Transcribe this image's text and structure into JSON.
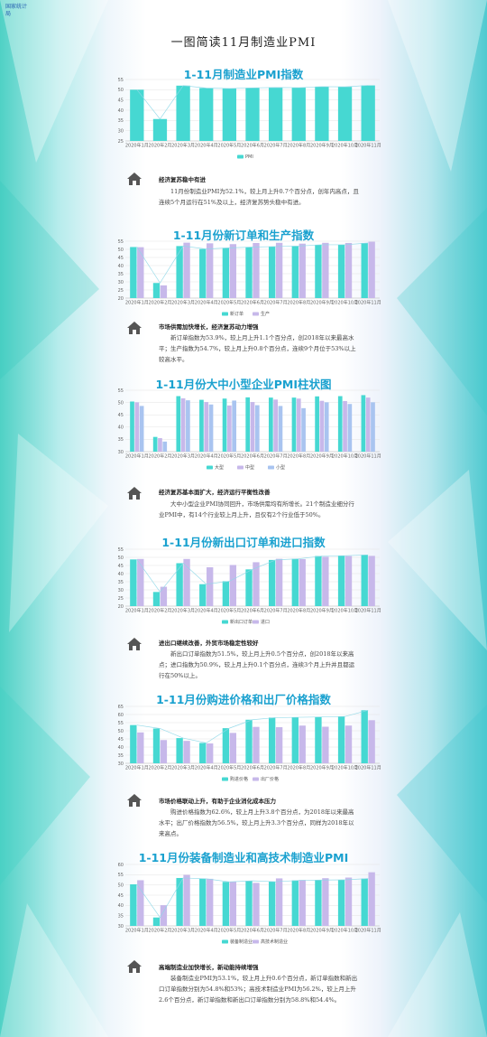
{
  "logo_text": "国家统计局",
  "page_title": "一图简读11月制造业PMI",
  "colors": {
    "teal": "#46d8d2",
    "lavender": "#c7b8ea",
    "line": "#8fd8e8",
    "title": "#1aa1cf"
  },
  "months": [
    "2020年1月",
    "2020年2月",
    "2020年3月",
    "2020年4月",
    "2020年5月",
    "2020年6月",
    "2020年7月",
    "2020年8月",
    "2020年9月",
    "2020年10月",
    "2020年11月"
  ],
  "sections": [
    {
      "note_head": "经济复苏稳中有进",
      "note_body": "11月份制造业PMI为52.1%，较上月上升0.7个百分点，创年内高点，且连续5个月运行在51%及以上，经济复苏势头稳中有进。"
    },
    {
      "note_head": "市场供需加快增长，经济复苏动力增强",
      "note_body": "新订单指数为53.9%，较上月上升1.1个百分点，创2018年以来最高水平；生产指数为54.7%，较上月上升0.8个百分点，连续9个月位于53%以上较高水平。"
    },
    {
      "note_head": "经济复苏基本面扩大，经济运行平衡性改善",
      "note_body": "大中小型企业PMI协同回升，市场供需均有所增长。21个制造业细分行业PMI中，有14个行业较上月上升，且仅有2个行业低于50%。"
    },
    {
      "note_head": "进出口继续改善，外贸市场稳定性较好",
      "note_body": "新出口订单指数为51.5%，较上月上升0.5个百分点，创2018年以来高点；进口指数为50.9%，较上月上升0.1个百分点，连续3个月上升并且都运行在50%以上。"
    },
    {
      "note_head": "市场价格联动上升，有助于企业消化成本压力",
      "note_body": "购进价格指数为62.6%，较上月上升3.8个百分点，为2018年以来最高水平；出厂价格指数为56.5%，较上月上升3.3个百分点，同样为2018年以来高点。"
    },
    {
      "note_head": "高端制造业加快增长，新动能持续增强",
      "note_body": "装备制造业PMI为53.1%，较上月上升0.6个百分点，新订单指数和新出口订单指数分别为54.8%和53%；高技术制造业PMI为56.2%，较上月上升2.6个百分点，新订单指数和新出口订单指数分别为58.8%和54.4%。"
    }
  ],
  "chart_data": [
    {
      "type": "bar",
      "title": "1-11月制造业PMI指数",
      "categories": [
        "2020年1月",
        "2020年2月",
        "2020年3月",
        "2020年4月",
        "2020年5月",
        "2020年6月",
        "2020年7月",
        "2020年8月",
        "2020年9月",
        "2020年10月",
        "2020年11月"
      ],
      "series": [
        {
          "name": "PMI",
          "values": [
            50.0,
            35.7,
            52.0,
            50.8,
            50.6,
            50.9,
            51.1,
            51.0,
            51.5,
            51.4,
            52.1
          ],
          "color": "#46d8d2"
        }
      ],
      "ylim": [
        25,
        55
      ],
      "yticks": [
        25,
        30,
        35,
        40,
        45,
        50,
        55
      ],
      "grid": true,
      "legend": "bottom",
      "trend_line": true
    },
    {
      "type": "bar",
      "title": "1-11月份新订单和生产指数",
      "categories": [
        "2020年1月",
        "2020年2月",
        "2020年3月",
        "2020年4月",
        "2020年5月",
        "2020年6月",
        "2020年7月",
        "2020年8月",
        "2020年9月",
        "2020年10月",
        "2020年11月"
      ],
      "series": [
        {
          "name": "新订单",
          "values": [
            51.4,
            29.3,
            52.0,
            50.2,
            50.9,
            51.4,
            51.7,
            52.0,
            52.8,
            52.8,
            53.9
          ],
          "color": "#46d8d2"
        },
        {
          "name": "生产",
          "values": [
            51.3,
            27.8,
            54.1,
            53.7,
            53.2,
            53.9,
            54.0,
            53.5,
            54.0,
            53.9,
            54.7
          ],
          "color": "#c7b8ea"
        }
      ],
      "ylim": [
        20,
        55
      ],
      "yticks": [
        20,
        25,
        30,
        35,
        40,
        45,
        50,
        55
      ],
      "grid": true,
      "legend": "bottom",
      "trend_line": true
    },
    {
      "type": "bar",
      "title": "1-11月份大中小型企业PMI柱状图",
      "categories": [
        "2020年1月",
        "2020年2月",
        "2020年3月",
        "2020年4月",
        "2020年5月",
        "2020年6月",
        "2020年7月",
        "2020年8月",
        "2020年9月",
        "2020年10月",
        "2020年11月"
      ],
      "series": [
        {
          "name": "大型",
          "values": [
            50.4,
            36.0,
            52.6,
            51.1,
            51.6,
            52.1,
            52.0,
            52.0,
            52.5,
            52.6,
            53.0
          ],
          "color": "#46d8d2"
        },
        {
          "name": "中型",
          "values": [
            50.1,
            35.5,
            51.7,
            50.2,
            48.8,
            50.2,
            51.2,
            51.6,
            50.7,
            50.6,
            52.0
          ],
          "color": "#c7b8ea"
        },
        {
          "name": "小型",
          "values": [
            48.6,
            34.1,
            50.9,
            49.2,
            50.8,
            48.9,
            48.6,
            47.7,
            50.1,
            49.4,
            50.1
          ],
          "color": "#a9c4f0"
        }
      ],
      "ylim": [
        30,
        55
      ],
      "yticks": [
        30,
        35,
        40,
        45,
        50,
        55
      ],
      "grid": true,
      "legend": "bottom"
    },
    {
      "type": "bar",
      "title": "1-11月份新出口订单和进口指数",
      "categories": [
        "2020年1月",
        "2020年2月",
        "2020年3月",
        "2020年4月",
        "2020年5月",
        "2020年6月",
        "2020年7月",
        "2020年8月",
        "2020年9月",
        "2020年10月",
        "2020年11月"
      ],
      "series": [
        {
          "name": "新出口订单",
          "values": [
            48.7,
            28.7,
            46.4,
            33.5,
            35.3,
            42.6,
            48.4,
            49.1,
            50.8,
            51.0,
            51.5
          ],
          "color": "#46d8d2"
        },
        {
          "name": "进口",
          "values": [
            49.0,
            31.9,
            49.0,
            43.9,
            45.3,
            47.0,
            49.1,
            48.9,
            50.4,
            50.8,
            50.9
          ],
          "color": "#c7b8ea"
        }
      ],
      "ylim": [
        20,
        55
      ],
      "yticks": [
        20,
        25,
        30,
        35,
        40,
        45,
        50,
        55
      ],
      "grid": true,
      "legend": "bottom",
      "trend_line": true
    },
    {
      "type": "bar",
      "title": "1-11月份购进价格和出厂价格指数",
      "categories": [
        "2020年1月",
        "2020年2月",
        "2020年3月",
        "2020年4月",
        "2020年5月",
        "2020年6月",
        "2020年7月",
        "2020年8月",
        "2020年9月",
        "2020年10月",
        "2020年11月"
      ],
      "series": [
        {
          "name": "购进价格",
          "values": [
            53.5,
            51.4,
            45.5,
            42.5,
            51.6,
            56.8,
            58.1,
            58.3,
            58.5,
            58.8,
            62.6
          ],
          "color": "#46d8d2"
        },
        {
          "name": "出厂价格",
          "values": [
            49.0,
            44.3,
            43.8,
            42.2,
            48.7,
            52.4,
            52.2,
            53.2,
            52.5,
            53.2,
            56.5
          ],
          "color": "#c7b8ea"
        }
      ],
      "ylim": [
        30,
        65
      ],
      "yticks": [
        30,
        35,
        40,
        45,
        50,
        55,
        60,
        65
      ],
      "grid": true,
      "legend": "bottom",
      "trend_line": true
    },
    {
      "type": "bar",
      "title": "1-11月份装备制造业和高技术制造业PMI",
      "categories": [
        "2020年1月",
        "2020年2月",
        "2020年3月",
        "2020年4月",
        "2020年5月",
        "2020年6月",
        "2020年7月",
        "2020年8月",
        "2020年9月",
        "2020年10月",
        "2020年11月"
      ],
      "series": [
        {
          "name": "装备制造业",
          "values": [
            50.3,
            34.1,
            53.4,
            53.0,
            51.5,
            52.0,
            51.6,
            52.2,
            52.4,
            52.5,
            53.1
          ],
          "color": "#46d8d2"
        },
        {
          "name": "高技术制造业",
          "values": [
            52.3,
            40.1,
            54.9,
            53.0,
            51.6,
            51.0,
            53.2,
            52.4,
            53.3,
            53.6,
            56.2
          ],
          "color": "#c7b8ea"
        }
      ],
      "ylim": [
        30,
        60
      ],
      "yticks": [
        30,
        35,
        40,
        45,
        50,
        55,
        60
      ],
      "grid": true,
      "legend": "bottom",
      "trend_line": true
    }
  ]
}
